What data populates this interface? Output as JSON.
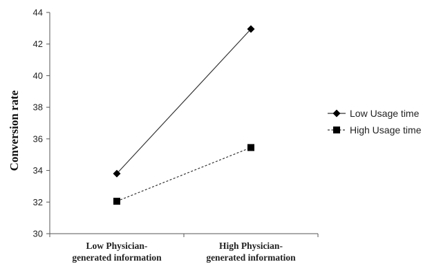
{
  "chart_data": {
    "type": "line",
    "categories": [
      [
        "Low Physician-",
        "generated information"
      ],
      [
        "High Physician-",
        "generated information"
      ]
    ],
    "series": [
      {
        "name": "Low Usage time",
        "values": [
          33.8,
          42.95
        ],
        "line_style": "solid",
        "marker": "diamond"
      },
      {
        "name": "High Usage time",
        "values": [
          32.05,
          35.45
        ],
        "line_style": "dashed",
        "marker": "square"
      }
    ],
    "ylabel": "Conversion rate",
    "xlabel": "",
    "ylim": [
      30,
      44
    ],
    "yticks": [
      "30",
      "32",
      "34",
      "36",
      "38",
      "40",
      "42",
      "44"
    ],
    "grid": false,
    "legend_position": "right"
  }
}
